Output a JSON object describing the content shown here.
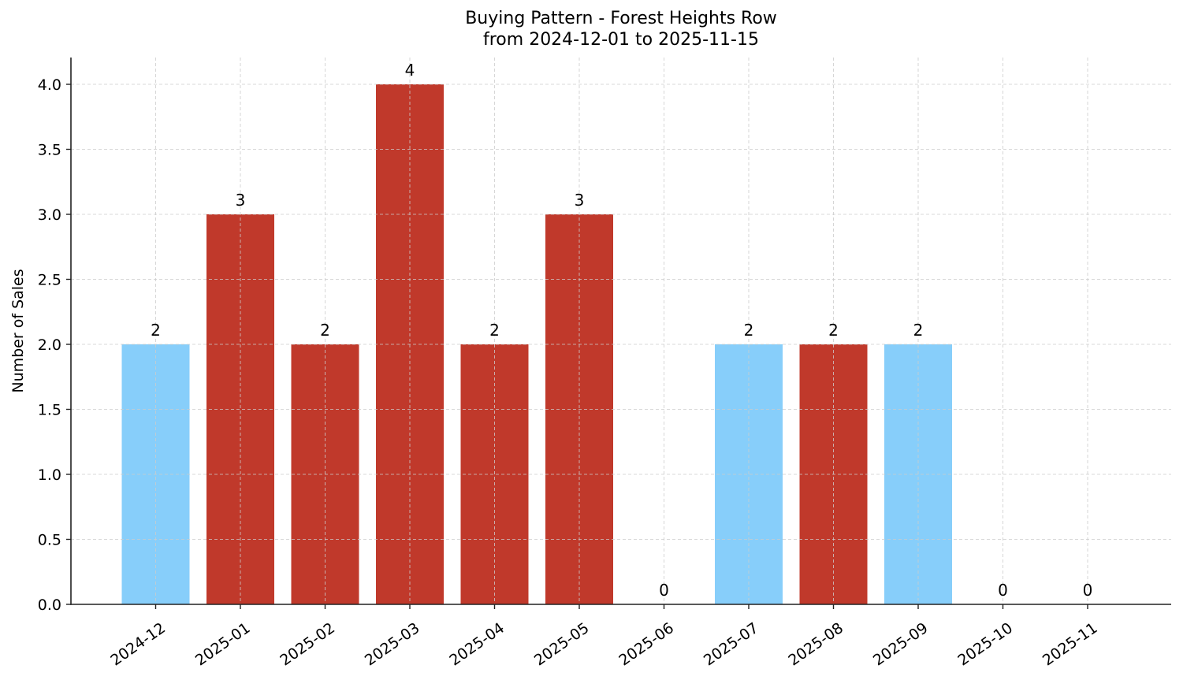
{
  "chart_data": {
    "type": "bar",
    "title": "Buying Pattern - Forest Heights Row",
    "subtitle": "from 2024-12-01 to 2025-11-15",
    "xlabel": "",
    "ylabel": "Number of Sales",
    "categories": [
      "2024-12",
      "2025-01",
      "2025-02",
      "2025-03",
      "2025-04",
      "2025-05",
      "2025-06",
      "2025-07",
      "2025-08",
      "2025-09",
      "2025-10",
      "2025-11"
    ],
    "values": [
      2,
      3,
      2,
      4,
      2,
      3,
      0,
      2,
      2,
      2,
      0,
      0
    ],
    "bar_colors": [
      "#87CEFA",
      "#C0392B",
      "#C0392B",
      "#C0392B",
      "#C0392B",
      "#C0392B",
      "#C0392B",
      "#87CEFA",
      "#C0392B",
      "#87CEFA",
      "#C0392B",
      "#C0392B"
    ],
    "data_labels": [
      "2",
      "3",
      "2",
      "4",
      "2",
      "3",
      "0",
      "2",
      "2",
      "2",
      "0",
      "0"
    ],
    "ylim": [
      0,
      4.2
    ],
    "yticks": [
      "0.0",
      "0.5",
      "1.0",
      "1.5",
      "2.0",
      "2.5",
      "3.0",
      "3.5",
      "4.0"
    ],
    "grid": true,
    "legend": null
  },
  "colors": {
    "light_blue": "#87CEFA",
    "red": "#C0392B",
    "grid": "#cccccc",
    "axis": "#222222"
  }
}
